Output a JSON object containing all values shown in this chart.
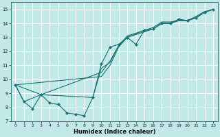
{
  "xlabel": "Humidex (Indice chaleur)",
  "xlim": [
    -0.5,
    23.5
  ],
  "ylim": [
    7,
    15.5
  ],
  "yticks": [
    7,
    8,
    9,
    10,
    11,
    12,
    13,
    14,
    15
  ],
  "xticks": [
    0,
    1,
    2,
    3,
    4,
    5,
    6,
    7,
    8,
    9,
    10,
    11,
    12,
    13,
    14,
    15,
    16,
    17,
    18,
    19,
    20,
    21,
    22,
    23
  ],
  "bg_color": "#c2e8e8",
  "grid_color": "#ffffff",
  "line_color": "#1a7070",
  "line1": [
    [
      0,
      9.6
    ],
    [
      1,
      8.4
    ],
    [
      2,
      7.9
    ],
    [
      3,
      8.9
    ],
    [
      4,
      8.3
    ],
    [
      5,
      8.2
    ],
    [
      6,
      7.6
    ],
    [
      7,
      7.5
    ],
    [
      8,
      7.4
    ],
    [
      9,
      8.7
    ],
    [
      10,
      11.1
    ],
    [
      11,
      12.3
    ],
    [
      12,
      12.5
    ],
    [
      13,
      13.0
    ],
    [
      14,
      12.5
    ],
    [
      15,
      13.5
    ],
    [
      16,
      13.6
    ],
    [
      17,
      14.0
    ],
    [
      18,
      14.0
    ],
    [
      19,
      14.3
    ],
    [
      20,
      14.2
    ],
    [
      21,
      14.4
    ],
    [
      22,
      14.8
    ],
    [
      23,
      15.0
    ]
  ],
  "line2": [
    [
      0,
      9.6
    ],
    [
      3,
      8.9
    ],
    [
      10,
      10.5
    ],
    [
      11,
      11.3
    ],
    [
      12,
      12.4
    ],
    [
      13,
      13.1
    ],
    [
      15,
      13.5
    ],
    [
      16,
      13.7
    ],
    [
      17,
      14.1
    ],
    [
      18,
      14.1
    ],
    [
      19,
      14.2
    ],
    [
      20,
      14.2
    ],
    [
      21,
      14.5
    ],
    [
      22,
      14.85
    ],
    [
      23,
      15.0
    ]
  ],
  "line3": [
    [
      0,
      9.6
    ],
    [
      1,
      8.4
    ],
    [
      3,
      8.9
    ],
    [
      9,
      8.7
    ],
    [
      10,
      10.8
    ],
    [
      11,
      11.2
    ],
    [
      12,
      12.4
    ],
    [
      13,
      13.0
    ],
    [
      15,
      13.4
    ],
    [
      16,
      13.6
    ],
    [
      17,
      14.0
    ],
    [
      18,
      14.0
    ],
    [
      19,
      14.2
    ],
    [
      20,
      14.2
    ],
    [
      21,
      14.4
    ],
    [
      22,
      14.8
    ],
    [
      23,
      15.0
    ]
  ],
  "line4": [
    [
      0,
      9.6
    ],
    [
      10,
      10.2
    ],
    [
      11,
      11.0
    ],
    [
      12,
      12.3
    ],
    [
      13,
      13.0
    ],
    [
      15,
      13.5
    ],
    [
      16,
      13.6
    ],
    [
      17,
      14.0
    ],
    [
      18,
      14.0
    ],
    [
      19,
      14.2
    ],
    [
      20,
      14.2
    ],
    [
      21,
      14.4
    ],
    [
      22,
      14.8
    ],
    [
      23,
      15.0
    ]
  ]
}
